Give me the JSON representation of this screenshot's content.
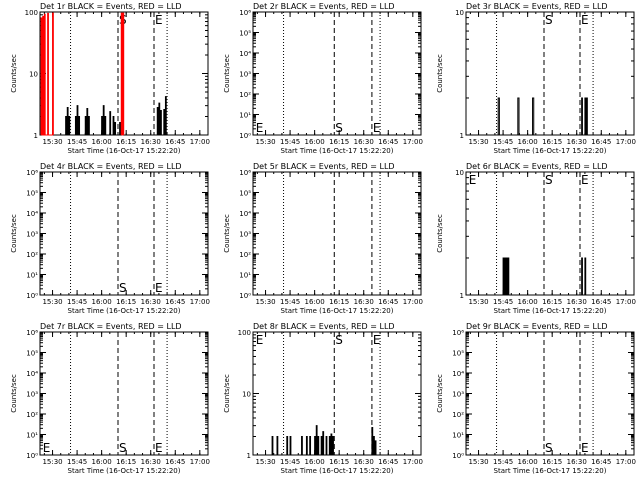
{
  "time_label": "Start Time (16-Oct-17 15:22:20)",
  "ylabel": "Counts/sec",
  "xticks": [
    "15:30",
    "15:45",
    "16:00",
    "16:15",
    "16:30",
    "16:45",
    "17:00"
  ],
  "markers": {
    "e": "E",
    "s": "S"
  },
  "colors": {
    "events": "#000000",
    "lld": "#ff0000"
  },
  "chart_data": [
    {
      "type": "line",
      "title": "Det 1r BLACK = Events, RED = LLD",
      "xlabel": "Start Time (16-Oct-17 15:22:20)",
      "ylabel": "Counts/sec",
      "xlim": [
        "15:22:20",
        "17:05:00"
      ],
      "ylim": [
        1,
        100
      ],
      "yscale": "log",
      "yticks": [
        "1",
        "10",
        "100"
      ],
      "vlines": {
        "dotted": [
          "15:41",
          "16:40"
        ],
        "dashed": [
          "16:10",
          "16:32"
        ]
      },
      "markers": [
        {
          "label": "S",
          "time": "16:10",
          "pos": "top"
        },
        {
          "label": "E",
          "time": "16:32",
          "pos": "top"
        }
      ],
      "series": [
        {
          "name": "BLACK = Events",
          "color": "#000000",
          "segments": [
            [
              [
                "15:24",
                2
              ],
              [
                "15:38",
                2
              ],
              [
                "15:39",
                2.8
              ],
              [
                "15:40",
                2
              ],
              [
                "15:44",
                2
              ],
              [
                "15:45",
                3
              ],
              [
                "15:46",
                2
              ],
              [
                "15:50",
                2
              ],
              [
                "15:51",
                2.7
              ],
              [
                "15:52",
                2
              ],
              [
                "16:00",
                2
              ],
              [
                "16:01",
                3
              ],
              [
                "16:02",
                2
              ],
              [
                "16:05",
                2.4
              ],
              [
                "16:07",
                2
              ],
              [
                "16:08",
                1.6
              ],
              [
                "16:11",
                1.6
              ]
            ],
            [
              [
                "16:34",
                2.8
              ],
              [
                "16:35",
                3.3
              ],
              [
                "16:36",
                2.5
              ],
              [
                "16:38",
                2.6
              ],
              [
                "16:39",
                4.2
              ]
            ]
          ]
        },
        {
          "name": "RED = LLD",
          "color": "#ff0000",
          "segments": [
            [
              [
                "15:23",
                80
              ],
              [
                "15:24",
                85
              ],
              [
                "15:25",
                92
              ],
              [
                "15:27",
                95
              ],
              [
                "15:30",
                96
              ]
            ],
            [
              [
                "16:12",
                96
              ],
              [
                "16:13",
                96
              ]
            ]
          ]
        }
      ]
    },
    {
      "type": "line",
      "title": "Det 2r BLACK = Events, RED = LLD",
      "xlabel": "Start Time (16-Oct-17 15:22:20)",
      "ylabel": "Counts/sec",
      "xlim": [
        "15:22:20",
        "17:05:00"
      ],
      "ylim": [
        1,
        1000000
      ],
      "yscale": "log",
      "yticks": [
        "10⁰",
        "10¹",
        "10²",
        "10³",
        "10⁴",
        "10⁵",
        "10⁶"
      ],
      "vlines": {
        "dotted": [
          "15:41",
          "16:40"
        ],
        "dashed": [
          "16:12",
          "16:35"
        ]
      },
      "markers": [
        {
          "label": "E",
          "time": "15:24",
          "pos": "bottom"
        },
        {
          "label": "S",
          "time": "16:12",
          "pos": "bottom"
        },
        {
          "label": "E",
          "time": "16:35",
          "pos": "bottom"
        }
      ],
      "series": []
    },
    {
      "type": "line",
      "title": "Det 3r BLACK = Events, RED = LLD",
      "xlabel": "Start Time (16-Oct-17 15:22:20)",
      "ylabel": "Counts/sec",
      "xlim": [
        "15:22:20",
        "17:05:00"
      ],
      "ylim": [
        1,
        10
      ],
      "yscale": "log",
      "yticks": [
        "1",
        "10"
      ],
      "vlines": {
        "dotted": [
          "15:41",
          "16:40"
        ],
        "dashed": [
          "16:10",
          "16:32"
        ]
      },
      "markers": [
        {
          "label": "S",
          "time": "16:10",
          "pos": "top"
        },
        {
          "label": "E",
          "time": "16:32",
          "pos": "top"
        }
      ],
      "series": [
        {
          "name": "BLACK = Events",
          "color": "#000000",
          "segments": [
            [
              [
                "15:42",
                2
              ]
            ],
            [
              [
                "15:54",
                2
              ]
            ],
            [
              [
                "16:03",
                2
              ]
            ],
            [
              [
                "16:33",
                2
              ],
              [
                "16:35",
                2
              ],
              [
                "16:36",
                2
              ]
            ]
          ]
        }
      ]
    },
    {
      "type": "line",
      "title": "Det 4r BLACK = Events, RED = LLD",
      "xlabel": "Start Time (16-Oct-17 15:22:20)",
      "ylabel": "Counts/sec",
      "xlim": [
        "15:22:20",
        "17:05:00"
      ],
      "ylim": [
        1,
        1000000
      ],
      "yscale": "log",
      "yticks": [
        "10⁰",
        "10¹",
        "10²",
        "10³",
        "10⁴",
        "10⁵",
        "10⁶"
      ],
      "vlines": {
        "dotted": [
          "15:41",
          "16:40"
        ],
        "dashed": [
          "16:10",
          "16:32"
        ]
      },
      "markers": [
        {
          "label": "S",
          "time": "16:10",
          "pos": "bottom"
        },
        {
          "label": "E",
          "time": "16:32",
          "pos": "bottom"
        }
      ],
      "series": []
    },
    {
      "type": "line",
      "title": "Det 5r BLACK = Events, RED = LLD",
      "xlabel": "Start Time (16-Oct-17 15:22:20)",
      "ylabel": "Counts/sec",
      "xlim": [
        "15:22:20",
        "17:05:00"
      ],
      "ylim": [
        1,
        1000000
      ],
      "yscale": "log",
      "yticks": [
        "10⁰",
        "10¹",
        "10²",
        "10³",
        "10⁴",
        "10⁵",
        "10⁶"
      ],
      "vlines": {
        "dotted": [
          "15:41",
          "16:40"
        ],
        "dashed": [
          "16:12",
          "16:35"
        ]
      },
      "markers": [],
      "series": []
    },
    {
      "type": "line",
      "title": "Det 6r BLACK = Events, RED = LLD",
      "xlabel": "Start Time (16-Oct-17 15:22:20)",
      "ylabel": "Counts/sec",
      "xlim": [
        "15:22:20",
        "17:05:00"
      ],
      "ylim": [
        1,
        10
      ],
      "yscale": "log",
      "yticks": [
        "1",
        "10"
      ],
      "vlines": {
        "dotted": [
          "15:41",
          "16:40"
        ],
        "dashed": [
          "16:10",
          "16:32"
        ]
      },
      "markers": [
        {
          "label": "E",
          "time": "15:24",
          "pos": "top"
        },
        {
          "label": "S",
          "time": "16:10",
          "pos": "top"
        },
        {
          "label": "E",
          "time": "16:32",
          "pos": "top"
        }
      ],
      "series": [
        {
          "name": "BLACK = Events",
          "color": "#000000",
          "segments": [
            [
              [
                "15:45",
                2
              ],
              [
                "15:46",
                2
              ],
              [
                "15:47",
                2
              ],
              [
                "15:48",
                2
              ]
            ],
            [
              [
                "16:33",
                2
              ],
              [
                "16:35",
                2
              ]
            ]
          ]
        }
      ]
    },
    {
      "type": "line",
      "title": "Det 7r BLACK = Events, RED = LLD",
      "xlabel": "Start Time (16-Oct-17 15:22:20)",
      "ylabel": "Counts/sec",
      "xlim": [
        "15:22:20",
        "17:05:00"
      ],
      "ylim": [
        1,
        1000000
      ],
      "yscale": "log",
      "yticks": [
        "10⁰",
        "10¹",
        "10²",
        "10³",
        "10⁴",
        "10⁵",
        "10⁶"
      ],
      "vlines": {
        "dotted": [
          "15:41",
          "16:40"
        ],
        "dashed": [
          "16:10",
          "16:32"
        ]
      },
      "markers": [
        {
          "label": "E",
          "time": "15:24",
          "pos": "bottom"
        },
        {
          "label": "S",
          "time": "16:10",
          "pos": "bottom"
        },
        {
          "label": "E",
          "time": "16:32",
          "pos": "bottom"
        }
      ],
      "series": []
    },
    {
      "type": "line",
      "title": "Det 8r BLACK = Events, RED = LLD",
      "xlabel": "Start Time (16-Oct-17 15:22:20)",
      "ylabel": "Counts/sec",
      "xlim": [
        "15:22:20",
        "17:05:00"
      ],
      "ylim": [
        1,
        100
      ],
      "yscale": "log",
      "yticks": [
        "1",
        "10",
        "100"
      ],
      "vlines": {
        "dotted": [
          "15:41",
          "16:40"
        ],
        "dashed": [
          "16:12",
          "16:35"
        ]
      },
      "markers": [
        {
          "label": "E",
          "time": "15:24",
          "pos": "top"
        },
        {
          "label": "S",
          "time": "16:12",
          "pos": "top"
        },
        {
          "label": "E",
          "time": "16:35",
          "pos": "top"
        }
      ],
      "series": [
        {
          "name": "BLACK = Events",
          "color": "#000000",
          "segments": [
            [
              [
                "15:34",
                2
              ],
              [
                "15:37",
                2
              ]
            ],
            [
              [
                "15:43",
                2
              ],
              [
                "15:45",
                2
              ]
            ],
            [
              [
                "15:52",
                2
              ],
              [
                "15:55",
                2
              ],
              [
                "15:57",
                2
              ]
            ],
            [
              [
                "16:00",
                2
              ],
              [
                "16:01",
                3
              ],
              [
                "16:02",
                2
              ],
              [
                "16:04",
                2
              ],
              [
                "16:05",
                2.4
              ],
              [
                "16:07",
                2
              ],
              [
                "16:09",
                2
              ],
              [
                "16:10",
                2.2
              ],
              [
                "16:11",
                2
              ]
            ],
            [
              [
                "16:35",
                2.8
              ],
              [
                "16:36",
                2
              ],
              [
                "16:37",
                1.7
              ]
            ]
          ]
        }
      ]
    },
    {
      "type": "line",
      "title": "Det 9r BLACK = Events, RED = LLD",
      "xlabel": "Start Time (16-Oct-17 15:22:20)",
      "ylabel": "Counts/sec",
      "xlim": [
        "15:22:20",
        "17:05:00"
      ],
      "ylim": [
        1,
        1000000
      ],
      "yscale": "log",
      "yticks": [
        "10⁰",
        "10¹",
        "10²",
        "10³",
        "10⁴",
        "10⁵",
        "10⁶"
      ],
      "vlines": {
        "dotted": [
          "15:41",
          "16:40"
        ],
        "dashed": [
          "16:10",
          "16:32"
        ]
      },
      "markers": [
        {
          "label": "S",
          "time": "16:10",
          "pos": "bottom"
        },
        {
          "label": "E",
          "time": "16:32",
          "pos": "bottom"
        }
      ],
      "series": []
    }
  ]
}
